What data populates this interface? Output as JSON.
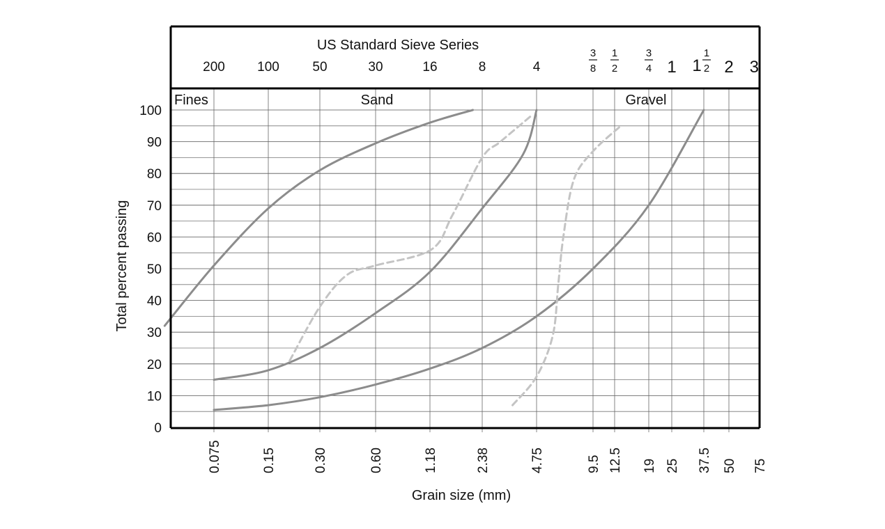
{
  "chart_data": {
    "type": "line",
    "title": "US Standard Sieve Series",
    "xlabel": "Grain size (mm)",
    "ylabel": "Total percent passing",
    "x_scale": "log",
    "ylim": [
      0,
      100
    ],
    "grid": true,
    "y_ticks": [
      "0",
      "10",
      "20",
      "30",
      "40",
      "50",
      "60",
      "70",
      "80",
      "90",
      "100"
    ],
    "x_ticks": [
      {
        "value": 0.075,
        "label": "0.075"
      },
      {
        "value": 0.15,
        "label": "0.15"
      },
      {
        "value": 0.3,
        "label": "0.30"
      },
      {
        "value": 0.6,
        "label": "0.60"
      },
      {
        "value": 1.18,
        "label": "1.18"
      },
      {
        "value": 2.38,
        "label": "2.38"
      },
      {
        "value": 4.75,
        "label": "4.75"
      },
      {
        "value": 9.5,
        "label": "9.5"
      },
      {
        "value": 12.5,
        "label": "12.5"
      },
      {
        "value": 19,
        "label": "19"
      },
      {
        "value": 25,
        "label": "25"
      },
      {
        "value": 37.5,
        "label": "37.5"
      },
      {
        "value": 50,
        "label": "50"
      },
      {
        "value": 75,
        "label": "75"
      }
    ],
    "sieve_labels": [
      {
        "value": 0.075,
        "label": "200"
      },
      {
        "value": 0.15,
        "label": "100"
      },
      {
        "value": 0.3,
        "label": "50"
      },
      {
        "value": 0.6,
        "label": "30"
      },
      {
        "value": 1.18,
        "label": "16"
      },
      {
        "value": 2.38,
        "label": "8"
      },
      {
        "value": 4.75,
        "label": "4"
      },
      {
        "value": 9.5,
        "frac": [
          "3",
          "8"
        ]
      },
      {
        "value": 12.5,
        "frac": [
          "1",
          "2"
        ]
      },
      {
        "value": 19,
        "frac": [
          "3",
          "4"
        ]
      },
      {
        "value": 25,
        "label": "1"
      },
      {
        "value": 37.5,
        "label": "1",
        "frac": [
          "1",
          "2"
        ]
      },
      {
        "value": 50,
        "label": "2"
      },
      {
        "value": 75,
        "label": "3"
      }
    ],
    "zones": [
      "Fines",
      "Sand",
      "Gravel"
    ],
    "series": [
      {
        "style": "solid",
        "color": "#8c8c8c",
        "x": [
          0.04,
          0.075,
          0.15,
          0.3,
          0.6,
          1.18,
          2.1
        ],
        "y": [
          32,
          51,
          69,
          81,
          89.5,
          96,
          100
        ]
      },
      {
        "style": "solid",
        "color": "#8c8c8c",
        "x": [
          0.075,
          0.15,
          0.3,
          0.6,
          1.18,
          2.38,
          4.0,
          4.75
        ],
        "y": [
          15,
          18,
          25,
          36,
          49,
          69,
          86,
          100
        ]
      },
      {
        "style": "solid",
        "color": "#8c8c8c",
        "x": [
          0.075,
          0.15,
          0.3,
          0.6,
          1.18,
          2.38,
          4.75,
          9.5,
          19,
          37.5
        ],
        "y": [
          5.5,
          7,
          9.5,
          13.5,
          18.5,
          25,
          35,
          50,
          70,
          100
        ]
      },
      {
        "style": "dashed",
        "color": "#c4c4c4",
        "x": [
          0.2,
          0.3,
          0.42,
          0.6,
          1.2,
          1.6,
          2.38,
          3.0,
          4.4
        ],
        "y": [
          21,
          38,
          48,
          51,
          56,
          67,
          85,
          90,
          98
        ]
      },
      {
        "style": "dashed",
        "color": "#c4c4c4",
        "x": [
          3.5,
          4.75,
          5.8,
          6.2,
          6.6,
          7.5,
          9.5,
          13.5
        ],
        "y": [
          7,
          16,
          29,
          45,
          60,
          78,
          87,
          95
        ]
      }
    ]
  }
}
